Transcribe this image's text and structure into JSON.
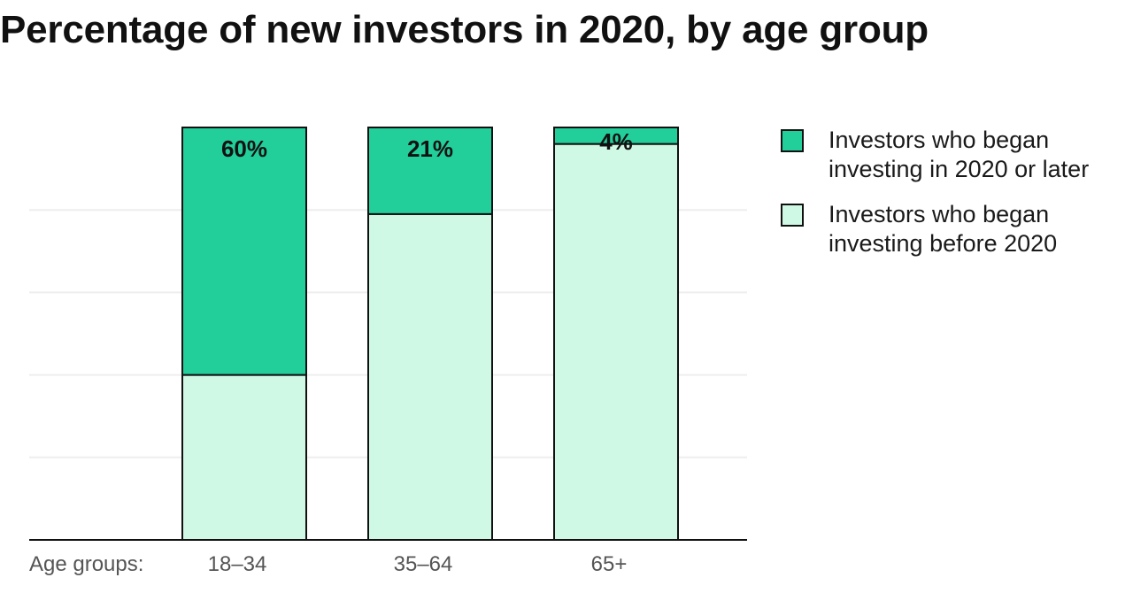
{
  "chart_data": {
    "type": "bar",
    "stacked": true,
    "title": "Percentage of new investors in 2020, by age group",
    "x_axis_prefix": "Age groups:",
    "categories": [
      "18–34",
      "35–64",
      "65+"
    ],
    "series": [
      {
        "name": "Investors who began investing in 2020 or later",
        "values": [
          60,
          21,
          4
        ],
        "labels": [
          "60%",
          "21%",
          "4%"
        ],
        "color": "#22CF9B"
      },
      {
        "name": "Investors who began investing before 2020",
        "values": [
          40,
          79,
          96
        ],
        "color": "#CFF9E4"
      }
    ],
    "ylim": [
      0,
      100
    ],
    "grid": true,
    "legend_position": "right",
    "stroke_color": "#111111",
    "gridline_color": "#EEEEEE"
  }
}
